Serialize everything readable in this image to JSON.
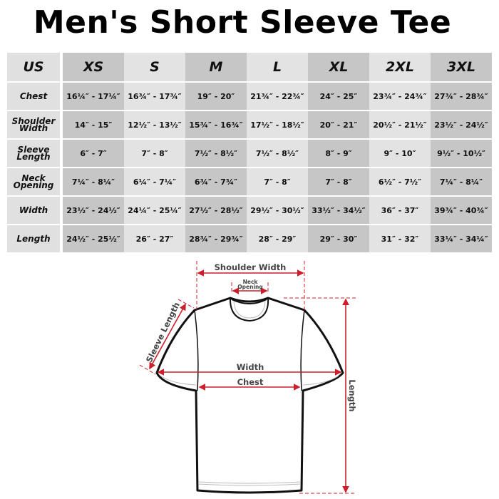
{
  "title": "Men's Short Sleeve Tee",
  "table": {
    "header": [
      "US",
      "XS",
      "S",
      "M",
      "L",
      "XL",
      "2XL",
      "3XL"
    ],
    "rows": [
      {
        "label": [
          "Chest"
        ],
        "values": [
          "16¼″ - 17¼″",
          "16¾″ - 17¾″",
          "19″ - 20″",
          "21¾″ - 22¾″",
          "24″ - 25″",
          "23¾″ - 24¾″",
          "27¾″ - 28¾″"
        ]
      },
      {
        "label": [
          "Shoulder",
          "Width"
        ],
        "values": [
          "14″ - 15″",
          "12½″ - 13½″",
          "15¾″ - 16¾″",
          "17½″ - 18½″",
          "20″ - 21″",
          "20½″ - 21½″",
          "23½″ - 24½″"
        ]
      },
      {
        "label": [
          "Sleeve",
          "Length"
        ],
        "values": [
          "6″ - 7″",
          "7″ - 8″",
          "7½″ - 8½″",
          "7½″ - 8½″",
          "8″ - 9″",
          "9″ - 10″",
          "9½″ - 10½″"
        ]
      },
      {
        "label": [
          "Neck",
          "Opening"
        ],
        "values": [
          "7¼″ - 8¼″",
          "6¼″ - 7¼″",
          "6¾″ - 7¾″",
          "7″ - 8″",
          "7″ - 8″",
          "6½″ - 7½″",
          "7¼″ - 8¼″"
        ]
      },
      {
        "label": [
          "Width"
        ],
        "values": [
          "23½″ - 24½″",
          "24¼″ - 25¼″",
          "27½″ - 28½″",
          "29½″ - 30½″",
          "33½″ - 34½″",
          "36″ - 37″",
          "39¾″ - 40¾″"
        ]
      },
      {
        "label": [
          "Length"
        ],
        "values": [
          "24½″ - 25½″",
          "26″ - 27″",
          "28¾″ - 29¾″",
          "28″ - 29″",
          "29″ - 30″",
          "31″ - 32″",
          "33¼″ - 34¼″"
        ]
      }
    ]
  },
  "diagram": {
    "shoulder_width": "Shoulder Width",
    "neck_opening": [
      "Neck",
      "Opening"
    ],
    "sleeve_length": "Sleeve Length",
    "width": "Width",
    "chest": "Chest",
    "length": "Length",
    "colors": {
      "measure_line": "#cc1f2b",
      "label": "#444444",
      "outline": "#111111"
    }
  }
}
